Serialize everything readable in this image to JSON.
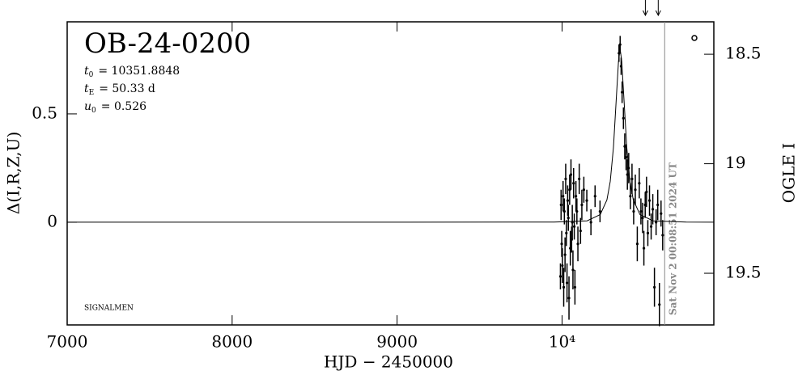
{
  "chart_data": {
    "type": "scatter",
    "title": "OB-24-0200",
    "parameters": [
      {
        "symbol": "t",
        "subscript": "0",
        "text": "= 10351.8848"
      },
      {
        "symbol": "t",
        "subscript": "E",
        "text": "= 50.33  d"
      },
      {
        "symbol": "u",
        "subscript": "0",
        "text": "= 0.526"
      }
    ],
    "footnote": "SIGNALMEN",
    "timestamp": "Sat Nov  2 00:08:51 2024 UT",
    "x_label": "HJD − 2450000",
    "y_label": "Δ(I,R,Z,U)",
    "y2_label": "OGLE I",
    "xlim": [
      7000,
      10920
    ],
    "ylim": [
      -0.474,
      0.925
    ],
    "y2lim": [
      19.736,
      18.352
    ],
    "xticks": [
      7000,
      8000,
      9000,
      {
        "value": 10000,
        "label": "10⁴"
      }
    ],
    "yticks": [
      0,
      0.5
    ],
    "y2ticks": [
      18.5,
      19,
      19.5
    ],
    "marker_lines_x": [
      10622
    ],
    "arrows_x": [
      10505,
      10583
    ],
    "model": {
      "color": "#000000",
      "x": [
        7000,
        9951.88,
        10151.88,
        10231.88,
        10271.88,
        10291.88,
        10311.88,
        10331.88,
        10341.88,
        10351.88,
        10361.88,
        10371.88,
        10391.88,
        10411.88,
        10431.88,
        10471.88,
        10551.88,
        10751.88,
        10920
      ],
      "values": [
        0,
        0.0005,
        0.0066,
        0.0357,
        0.103,
        0.188,
        0.347,
        0.61,
        0.743,
        0.8,
        0.743,
        0.61,
        0.347,
        0.188,
        0.103,
        0.0357,
        0.0066,
        0.0005,
        0
      ]
    },
    "series": [
      {
        "name": "OGLE",
        "color": "#000000",
        "x": [
          9990,
          9994,
          9998,
          10002,
          10006,
          10010,
          10014,
          10018,
          10022,
          10026,
          10030,
          10034,
          10038,
          10042,
          10046,
          10050,
          10054,
          10058,
          10062,
          10066,
          10070,
          10074,
          10078,
          10084,
          10090,
          10096,
          10104,
          10112,
          10120,
          10132,
          10150,
          10175,
          10200,
          10230,
          10345,
          10352,
          10358,
          10364,
          10372,
          10380,
          10388,
          10396,
          10404,
          10414,
          10424,
          10434,
          10444,
          10456,
          10468,
          10478,
          10488,
          10496,
          10504,
          10512,
          10520,
          10530,
          10540,
          10550,
          10560,
          10570,
          10580,
          10590,
          10600,
          10610
        ],
        "values": [
          -0.25,
          0.08,
          -0.1,
          -0.2,
          0.12,
          -0.3,
          0.05,
          -0.15,
          0.2,
          -0.05,
          -0.28,
          0.1,
          0.02,
          -0.35,
          0.15,
          -0.12,
          0.22,
          -0.08,
          0.0,
          -0.22,
          0.18,
          -0.02,
          -0.3,
          0.12,
          0.05,
          -0.1,
          0.2,
          -0.04,
          0.08,
          0.15,
          0.1,
          0.0,
          0.12,
          0.05,
          0.78,
          0.82,
          0.72,
          0.6,
          0.48,
          0.35,
          0.3,
          0.22,
          0.25,
          0.12,
          0.2,
          0.05,
          0.15,
          -0.1,
          0.18,
          0.05,
          0.02,
          -0.12,
          0.08,
          0.14,
          -0.05,
          0.1,
          -0.02,
          0.06,
          -0.3,
          0.0,
          0.08,
          -0.38,
          0.04,
          -0.06
        ],
        "errors": [
          0.06,
          0.07,
          0.06,
          0.08,
          0.07,
          0.09,
          0.06,
          0.08,
          0.07,
          0.06,
          0.09,
          0.07,
          0.06,
          0.1,
          0.07,
          0.08,
          0.07,
          0.06,
          0.08,
          0.09,
          0.07,
          0.06,
          0.08,
          0.07,
          0.06,
          0.08,
          0.07,
          0.06,
          0.07,
          0.06,
          0.05,
          0.06,
          0.05,
          0.05,
          0.04,
          0.04,
          0.04,
          0.05,
          0.05,
          0.06,
          0.06,
          0.07,
          0.07,
          0.06,
          0.07,
          0.06,
          0.07,
          0.08,
          0.07,
          0.06,
          0.07,
          0.08,
          0.06,
          0.07,
          0.06,
          0.07,
          0.06,
          0.07,
          0.09,
          0.06,
          0.07,
          0.1,
          0.06,
          0.07
        ]
      }
    ]
  }
}
